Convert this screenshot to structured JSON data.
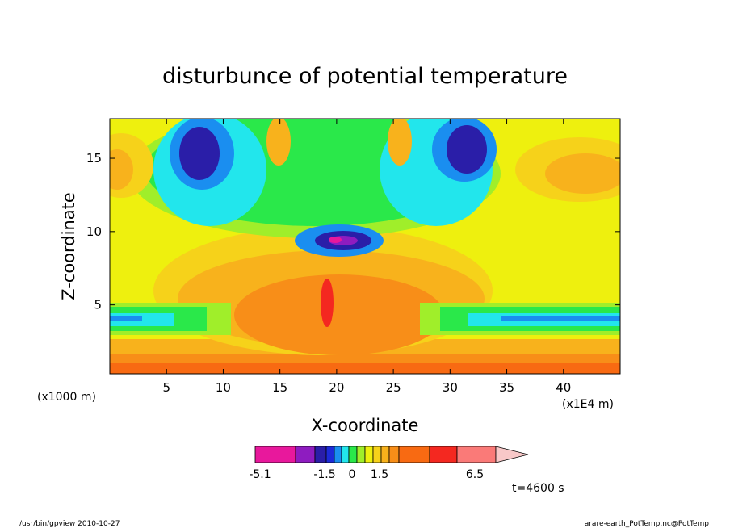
{
  "chart_data": {
    "type": "heatmap",
    "title": "disturbunce of potential temperature",
    "xlabel": "X-coordinate",
    "ylabel": "Z-coordinate",
    "x_unit_left": "(x1000 m)",
    "x_unit_right": "(x1E4 m)",
    "xlim": [
      0,
      45
    ],
    "ylim": [
      0.3,
      17.7
    ],
    "xticks": [
      "5",
      "10",
      "15",
      "20",
      "25",
      "30",
      "35",
      "40"
    ],
    "xtick_values": [
      5,
      10,
      15,
      20,
      25,
      30,
      35,
      40
    ],
    "yticks": [
      "5",
      "10",
      "15"
    ],
    "ytick_values": [
      5,
      10,
      15
    ],
    "colorbar": {
      "levels": [
        -5.1,
        -4.1,
        -3.1,
        -2.5,
        -2.0,
        -1.5,
        -1.0,
        -0.5,
        0,
        0.5,
        1.0,
        1.5,
        2.5,
        3.5,
        4.5,
        6.5
      ],
      "colors": [
        "#e8189c",
        "#8e1cc0",
        "#2a1ea8",
        "#1c2ad8",
        "#1a8ef0",
        "#22e6ec",
        "#2ae84a",
        "#a0ee2a",
        "#eef00e",
        "#f6d21a",
        "#f8b21c",
        "#f88e18",
        "#f86a12",
        "#f42820",
        "#fa7a78",
        "#f8c8c8"
      ],
      "labels": [
        "-5.1",
        "-1.5",
        "0",
        "1.5",
        "6.5"
      ],
      "label_positions": [
        -5.1,
        -1.5,
        0,
        1.5,
        6.5
      ]
    },
    "time_label": "t=4600 s",
    "field_features": [
      {
        "kind": "band",
        "x": [
          0,
          45
        ],
        "z": [
          0.3,
          2.5
        ],
        "value": 2.0
      },
      {
        "kind": "band",
        "x": [
          0,
          45
        ],
        "z": [
          0.3,
          1.2
        ],
        "value": 3.0
      },
      {
        "kind": "blob",
        "x": 22,
        "z": 3.5,
        "value": 3.0
      },
      {
        "kind": "blob",
        "x": 19,
        "z": 5.0,
        "value": 4.0
      },
      {
        "kind": "blob",
        "x": 8,
        "z": 15.2,
        "value": -2.5
      },
      {
        "kind": "blob",
        "x": 31,
        "z": 15.2,
        "value": -2.5
      },
      {
        "kind": "blob",
        "x": 19.5,
        "z": 9.2,
        "value": -5.0
      },
      {
        "kind": "blob",
        "x": 2,
        "z": 13.5,
        "value": 1.5
      },
      {
        "kind": "blob",
        "x": 40,
        "z": 13.5,
        "value": 1.5
      },
      {
        "kind": "band",
        "x": [
          0,
          10
        ],
        "z": [
          3.5,
          5.0
        ],
        "value": -1.5
      },
      {
        "kind": "band",
        "x": [
          30,
          45
        ],
        "z": [
          3.5,
          5.0
        ],
        "value": -1.5
      }
    ]
  },
  "footer": {
    "left": "/usr/bin/gpview   2010-10-27",
    "right": "arare-earth_PotTemp.nc@PotTemp"
  }
}
